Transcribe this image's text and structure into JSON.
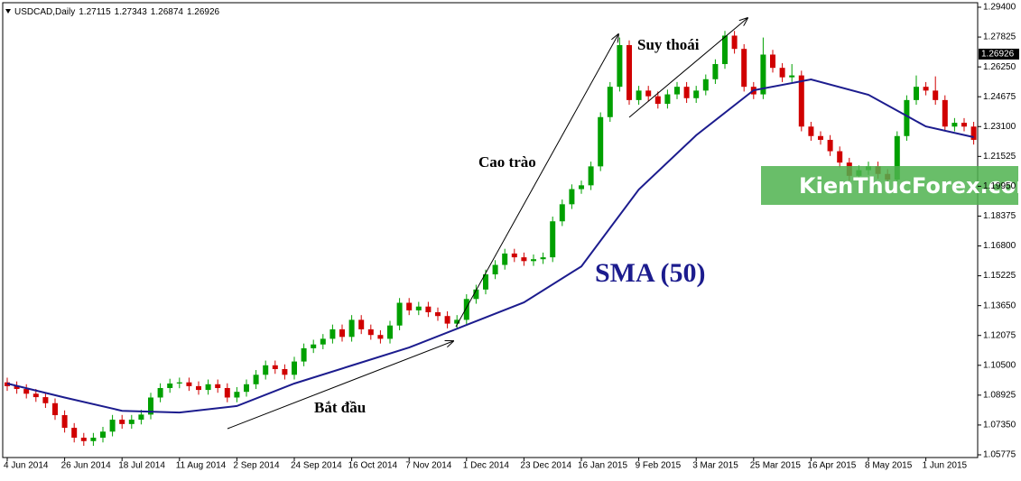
{
  "chart_data": {
    "type": "candlestick",
    "header": {
      "symbol": "USDCAD,Daily",
      "ohlc": [
        1.27115,
        1.27343,
        1.26874,
        1.26926
      ]
    },
    "categories": [
      "4 Jun 2014",
      null,
      null,
      null,
      null,
      null,
      "26 Jun 2014",
      null,
      null,
      null,
      null,
      null,
      "18 Jul 2014",
      null,
      null,
      null,
      null,
      null,
      "11 Aug 2014",
      null,
      null,
      null,
      null,
      null,
      "2 Sep 2014",
      null,
      null,
      null,
      null,
      null,
      "24 Sep 2014",
      null,
      null,
      null,
      null,
      null,
      "16 Oct 2014",
      null,
      null,
      null,
      null,
      null,
      "7 Nov 2014",
      null,
      null,
      null,
      null,
      null,
      "1 Dec 2014",
      null,
      null,
      null,
      null,
      null,
      "23 Dec 2014",
      null,
      null,
      null,
      null,
      null,
      "16 Jan 2015",
      null,
      null,
      null,
      null,
      null,
      "9 Feb 2015",
      null,
      null,
      null,
      null,
      null,
      "3 Mar 2015",
      null,
      null,
      null,
      null,
      null,
      "25 Mar 2015",
      null,
      null,
      null,
      null,
      null,
      "16 Apr 2015",
      null,
      null,
      null,
      null,
      null,
      "8 May 2015",
      null,
      null,
      null,
      null,
      null,
      "1 Jun 2015",
      null,
      null,
      null,
      null,
      null
    ],
    "open": [
      1.096,
      1.094,
      1.0925,
      1.09,
      1.0882,
      1.085,
      1.0787,
      1.072,
      1.0668,
      1.065,
      1.0668,
      1.07,
      1.0763,
      1.074,
      1.0763,
      1.079,
      1.088,
      1.093,
      1.0954,
      1.096,
      1.094,
      1.092,
      1.095,
      1.093,
      1.088,
      1.091,
      1.095,
      1.1,
      1.105,
      1.103,
      1.1,
      1.107,
      1.114,
      1.116,
      1.119,
      1.124,
      1.12,
      1.129,
      1.124,
      1.121,
      1.119,
      1.126,
      1.138,
      1.134,
      1.136,
      1.133,
      1.131,
      1.127,
      1.129,
      1.14,
      1.145,
      1.153,
      1.158,
      1.164,
      1.162,
      1.16,
      1.161,
      1.162,
      1.181,
      1.19,
      1.198,
      1.2,
      1.21,
      1.236,
      1.252,
      1.274,
      1.245,
      1.25,
      1.247,
      1.243,
      1.248,
      1.252,
      1.246,
      1.25,
      1.256,
      1.264,
      1.279,
      1.272,
      1.252,
      1.248,
      1.269,
      1.262,
      1.257,
      1.258,
      1.231,
      1.226,
      1.224,
      1.218,
      1.212,
      1.205,
      1.208,
      1.21,
      1.206,
      1.203,
      1.226,
      1.245,
      1.252,
      1.25,
      1.245,
      1.231,
      1.233,
      1.231
    ],
    "high": [
      1.0985,
      1.0965,
      1.095,
      1.0925,
      1.0907,
      1.0875,
      1.0812,
      1.0745,
      1.0693,
      1.0693,
      1.0725,
      1.0788,
      1.0788,
      1.0788,
      1.0815,
      1.0905,
      1.0955,
      1.0979,
      1.0985,
      1.0985,
      1.0965,
      1.0975,
      1.0975,
      1.0955,
      1.0935,
      1.0975,
      1.1025,
      1.1075,
      1.1075,
      1.1055,
      1.1095,
      1.1165,
      1.1185,
      1.1215,
      1.1265,
      1.1265,
      1.1315,
      1.1315,
      1.1265,
      1.1235,
      1.1285,
      1.1405,
      1.1405,
      1.1385,
      1.1385,
      1.1355,
      1.1335,
      1.1315,
      1.1425,
      1.1475,
      1.1555,
      1.1605,
      1.1665,
      1.1665,
      1.1645,
      1.1635,
      1.1645,
      1.1835,
      1.1925,
      1.2005,
      1.2025,
      1.2125,
      1.2385,
      1.2545,
      1.278,
      1.2765,
      1.2525,
      1.2525,
      1.2495,
      1.2505,
      1.2545,
      1.2545,
      1.2525,
      1.2585,
      1.2665,
      1.2815,
      1.2815,
      1.2745,
      1.2545,
      1.278,
      1.2715,
      1.2645,
      1.264,
      1.2605,
      1.2335,
      1.2285,
      1.2265,
      1.2205,
      1.2145,
      1.2105,
      1.2125,
      1.2125,
      1.2085,
      1.2285,
      1.2475,
      1.258,
      1.2545,
      1.2575,
      1.2475,
      1.2355,
      1.2355,
      1.2335
    ],
    "low": [
      1.0915,
      1.09,
      1.0875,
      1.0857,
      1.0825,
      1.0762,
      1.0695,
      1.0643,
      1.0625,
      1.0625,
      1.0643,
      1.0675,
      1.0715,
      1.0715,
      1.0738,
      1.0765,
      1.0855,
      1.0905,
      1.0929,
      1.0915,
      1.0895,
      1.0895,
      1.0905,
      1.0855,
      1.0855,
      1.0885,
      1.0925,
      1.0975,
      1.1005,
      1.0975,
      1.0975,
      1.1045,
      1.1115,
      1.1135,
      1.1165,
      1.1175,
      1.1175,
      1.1215,
      1.1185,
      1.1165,
      1.1165,
      1.1235,
      1.1315,
      1.1315,
      1.1305,
      1.1285,
      1.1245,
      1.1245,
      1.1265,
      1.1375,
      1.1425,
      1.1505,
      1.1555,
      1.1595,
      1.1575,
      1.1575,
      1.1585,
      1.1595,
      1.1785,
      1.1875,
      1.1955,
      1.1975,
      1.2075,
      1.2335,
      1.2495,
      1.2425,
      1.2425,
      1.2445,
      1.2405,
      1.2405,
      1.2455,
      1.2435,
      1.2435,
      1.2475,
      1.2535,
      1.2615,
      1.2695,
      1.2495,
      1.2455,
      1.2455,
      1.2595,
      1.2545,
      1.2545,
      1.2285,
      1.2235,
      1.2215,
      1.2155,
      1.2095,
      1.2025,
      1.2025,
      1.2055,
      1.2035,
      1.2005,
      1.2005,
      1.2235,
      1.2425,
      1.2475,
      1.2425,
      1.2285,
      1.2285,
      1.2285,
      1.2215
    ],
    "close": [
      1.094,
      1.0925,
      1.09,
      1.0882,
      1.085,
      1.0787,
      1.072,
      1.0668,
      1.065,
      1.0668,
      1.07,
      1.0763,
      1.074,
      1.0763,
      1.079,
      1.088,
      1.093,
      1.0954,
      1.096,
      1.094,
      1.092,
      1.095,
      1.093,
      1.088,
      1.091,
      1.095,
      1.1,
      1.105,
      1.103,
      1.1,
      1.107,
      1.114,
      1.116,
      1.119,
      1.124,
      1.12,
      1.129,
      1.124,
      1.121,
      1.119,
      1.126,
      1.138,
      1.134,
      1.136,
      1.133,
      1.131,
      1.127,
      1.129,
      1.14,
      1.145,
      1.153,
      1.158,
      1.164,
      1.162,
      1.16,
      1.161,
      1.162,
      1.181,
      1.19,
      1.198,
      1.2,
      1.21,
      1.236,
      1.252,
      1.274,
      1.245,
      1.25,
      1.247,
      1.243,
      1.248,
      1.252,
      1.246,
      1.25,
      1.256,
      1.264,
      1.279,
      1.272,
      1.252,
      1.248,
      1.269,
      1.262,
      1.257,
      1.258,
      1.231,
      1.226,
      1.224,
      1.218,
      1.212,
      1.205,
      1.208,
      1.21,
      1.206,
      1.203,
      1.226,
      1.245,
      1.252,
      1.25,
      1.245,
      1.231,
      1.233,
      1.231,
      1.224
    ],
    "up_color": "#00a000",
    "down_color": "#d00000",
    "sma": {
      "name": "SMA (50)",
      "color": "#1c1c8e",
      "x": [
        0,
        6,
        12,
        18,
        24,
        30,
        36,
        42,
        48,
        54,
        60,
        66,
        72,
        78,
        84,
        90,
        96,
        101
      ],
      "values": [
        1.0954,
        1.088,
        1.081,
        1.0801,
        1.0835,
        1.0954,
        1.1049,
        1.1144,
        1.1263,
        1.1382,
        1.1572,
        1.1978,
        1.2264,
        1.2502,
        1.2559,
        1.2478,
        1.2311,
        1.2254
      ]
    },
    "ylim": [
      1.05632,
      1.29638
    ],
    "yticks": [
      {
        "value": 1.294,
        "label": "1.29400"
      },
      {
        "value": 1.27825,
        "label": "1.27825"
      },
      {
        "value": 1.2625,
        "label": "1.26250"
      },
      {
        "value": 1.24675,
        "label": "1.24675"
      },
      {
        "value": 1.231,
        "label": "1.23100"
      },
      {
        "value": 1.21525,
        "label": "1.21525"
      },
      {
        "value": 1.1995,
        "label": "1.19950"
      },
      {
        "value": 1.18375,
        "label": "1.18375"
      },
      {
        "value": 1.168,
        "label": "1.16800"
      },
      {
        "value": 1.15225,
        "label": "1.15225"
      },
      {
        "value": 1.1365,
        "label": "1.13650"
      },
      {
        "value": 1.12075,
        "label": "1.12075"
      },
      {
        "value": 1.105,
        "label": "1.10500"
      },
      {
        "value": 1.08925,
        "label": "1.08925"
      },
      {
        "value": 1.0735,
        "label": "1.07350"
      },
      {
        "value": 1.05775,
        "label": "1.05775"
      }
    ],
    "price_marker": {
      "value": 1.26926,
      "label": "1.26926"
    },
    "annotations": {
      "start": "Bắt đầu",
      "climax": "Cao trào",
      "decline": "Suy thoái"
    },
    "watermark": "KienThucForex.com"
  }
}
